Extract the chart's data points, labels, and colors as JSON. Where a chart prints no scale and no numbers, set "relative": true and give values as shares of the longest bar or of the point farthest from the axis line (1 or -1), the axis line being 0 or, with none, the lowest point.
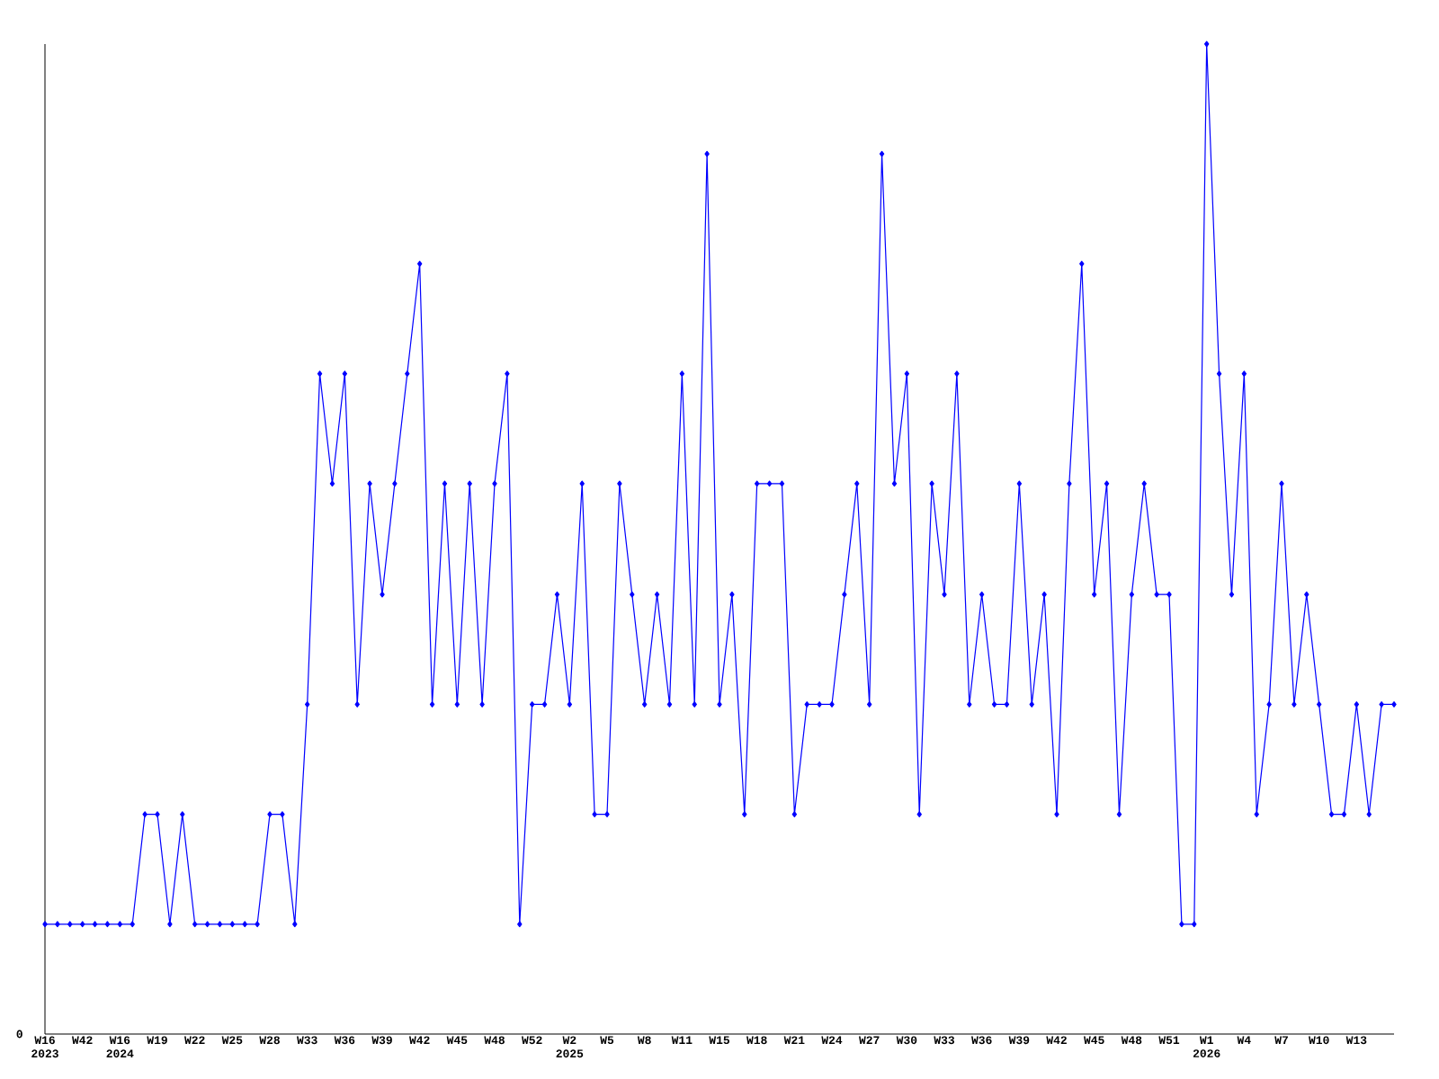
{
  "chart_data": {
    "type": "line",
    "relative": true,
    "marker": "diamond",
    "line_style": "solid",
    "grid": false,
    "legend": false,
    "categories": [
      "W16 2023",
      null,
      null,
      "W42",
      null,
      null,
      "W16 2024",
      null,
      null,
      "W19",
      null,
      null,
      "W22",
      null,
      null,
      "W25",
      null,
      null,
      "W28",
      null,
      null,
      "W33",
      null,
      null,
      "W36",
      null,
      null,
      "W39",
      null,
      null,
      "W42",
      null,
      null,
      "W45",
      null,
      null,
      "W48",
      null,
      null,
      "W52",
      null,
      null,
      "W2 2025",
      null,
      null,
      "W5",
      null,
      null,
      "W8",
      null,
      null,
      "W11",
      null,
      null,
      "W15",
      null,
      null,
      "W18",
      null,
      null,
      "W21",
      null,
      null,
      "W24",
      null,
      null,
      "W27",
      null,
      null,
      "W30",
      null,
      null,
      "W33",
      null,
      null,
      "W36",
      null,
      null,
      "W39",
      null,
      null,
      "W42",
      null,
      null,
      "W45",
      null,
      null,
      "W48",
      null,
      null,
      "W51",
      null,
      null,
      "W1 2026",
      null,
      null,
      "W4",
      null,
      null,
      "W7",
      null,
      null,
      "W10",
      null,
      null,
      "W13",
      null,
      null,
      null
    ],
    "annotations": [
      "0"
    ],
    "series": [
      {
        "color": "#0000ff",
        "values": [
          0.111,
          0.111,
          0.111,
          0.111,
          0.111,
          0.111,
          0.111,
          0.111,
          0.222,
          0.222,
          0.111,
          0.222,
          0.111,
          0.111,
          0.111,
          0.111,
          0.111,
          0.111,
          0.222,
          0.222,
          0.111,
          0.333,
          0.667,
          0.556,
          0.667,
          0.333,
          0.556,
          0.444,
          0.556,
          0.667,
          0.778,
          0.333,
          0.556,
          0.333,
          0.556,
          0.333,
          0.556,
          0.667,
          0.111,
          0.333,
          0.333,
          0.444,
          0.333,
          0.556,
          0.222,
          0.222,
          0.556,
          0.444,
          0.333,
          0.444,
          0.333,
          0.667,
          0.333,
          0.889,
          0.333,
          0.444,
          0.222,
          0.556,
          0.556,
          0.556,
          0.222,
          0.333,
          0.333,
          0.333,
          0.444,
          0.556,
          0.333,
          0.889,
          0.556,
          0.667,
          0.222,
          0.556,
          0.444,
          0.667,
          0.333,
          0.444,
          0.333,
          0.333,
          0.556,
          0.333,
          0.444,
          0.222,
          0.556,
          0.778,
          0.444,
          0.556,
          0.222,
          0.444,
          0.556,
          0.444,
          0.444,
          0.111,
          0.111,
          1,
          0.667,
          0.444,
          0.667,
          0.222,
          0.333,
          0.556,
          0.333,
          0.444,
          0.333,
          0.222,
          0.222,
          0.333,
          0.222,
          0.333,
          0.333
        ]
      }
    ]
  }
}
